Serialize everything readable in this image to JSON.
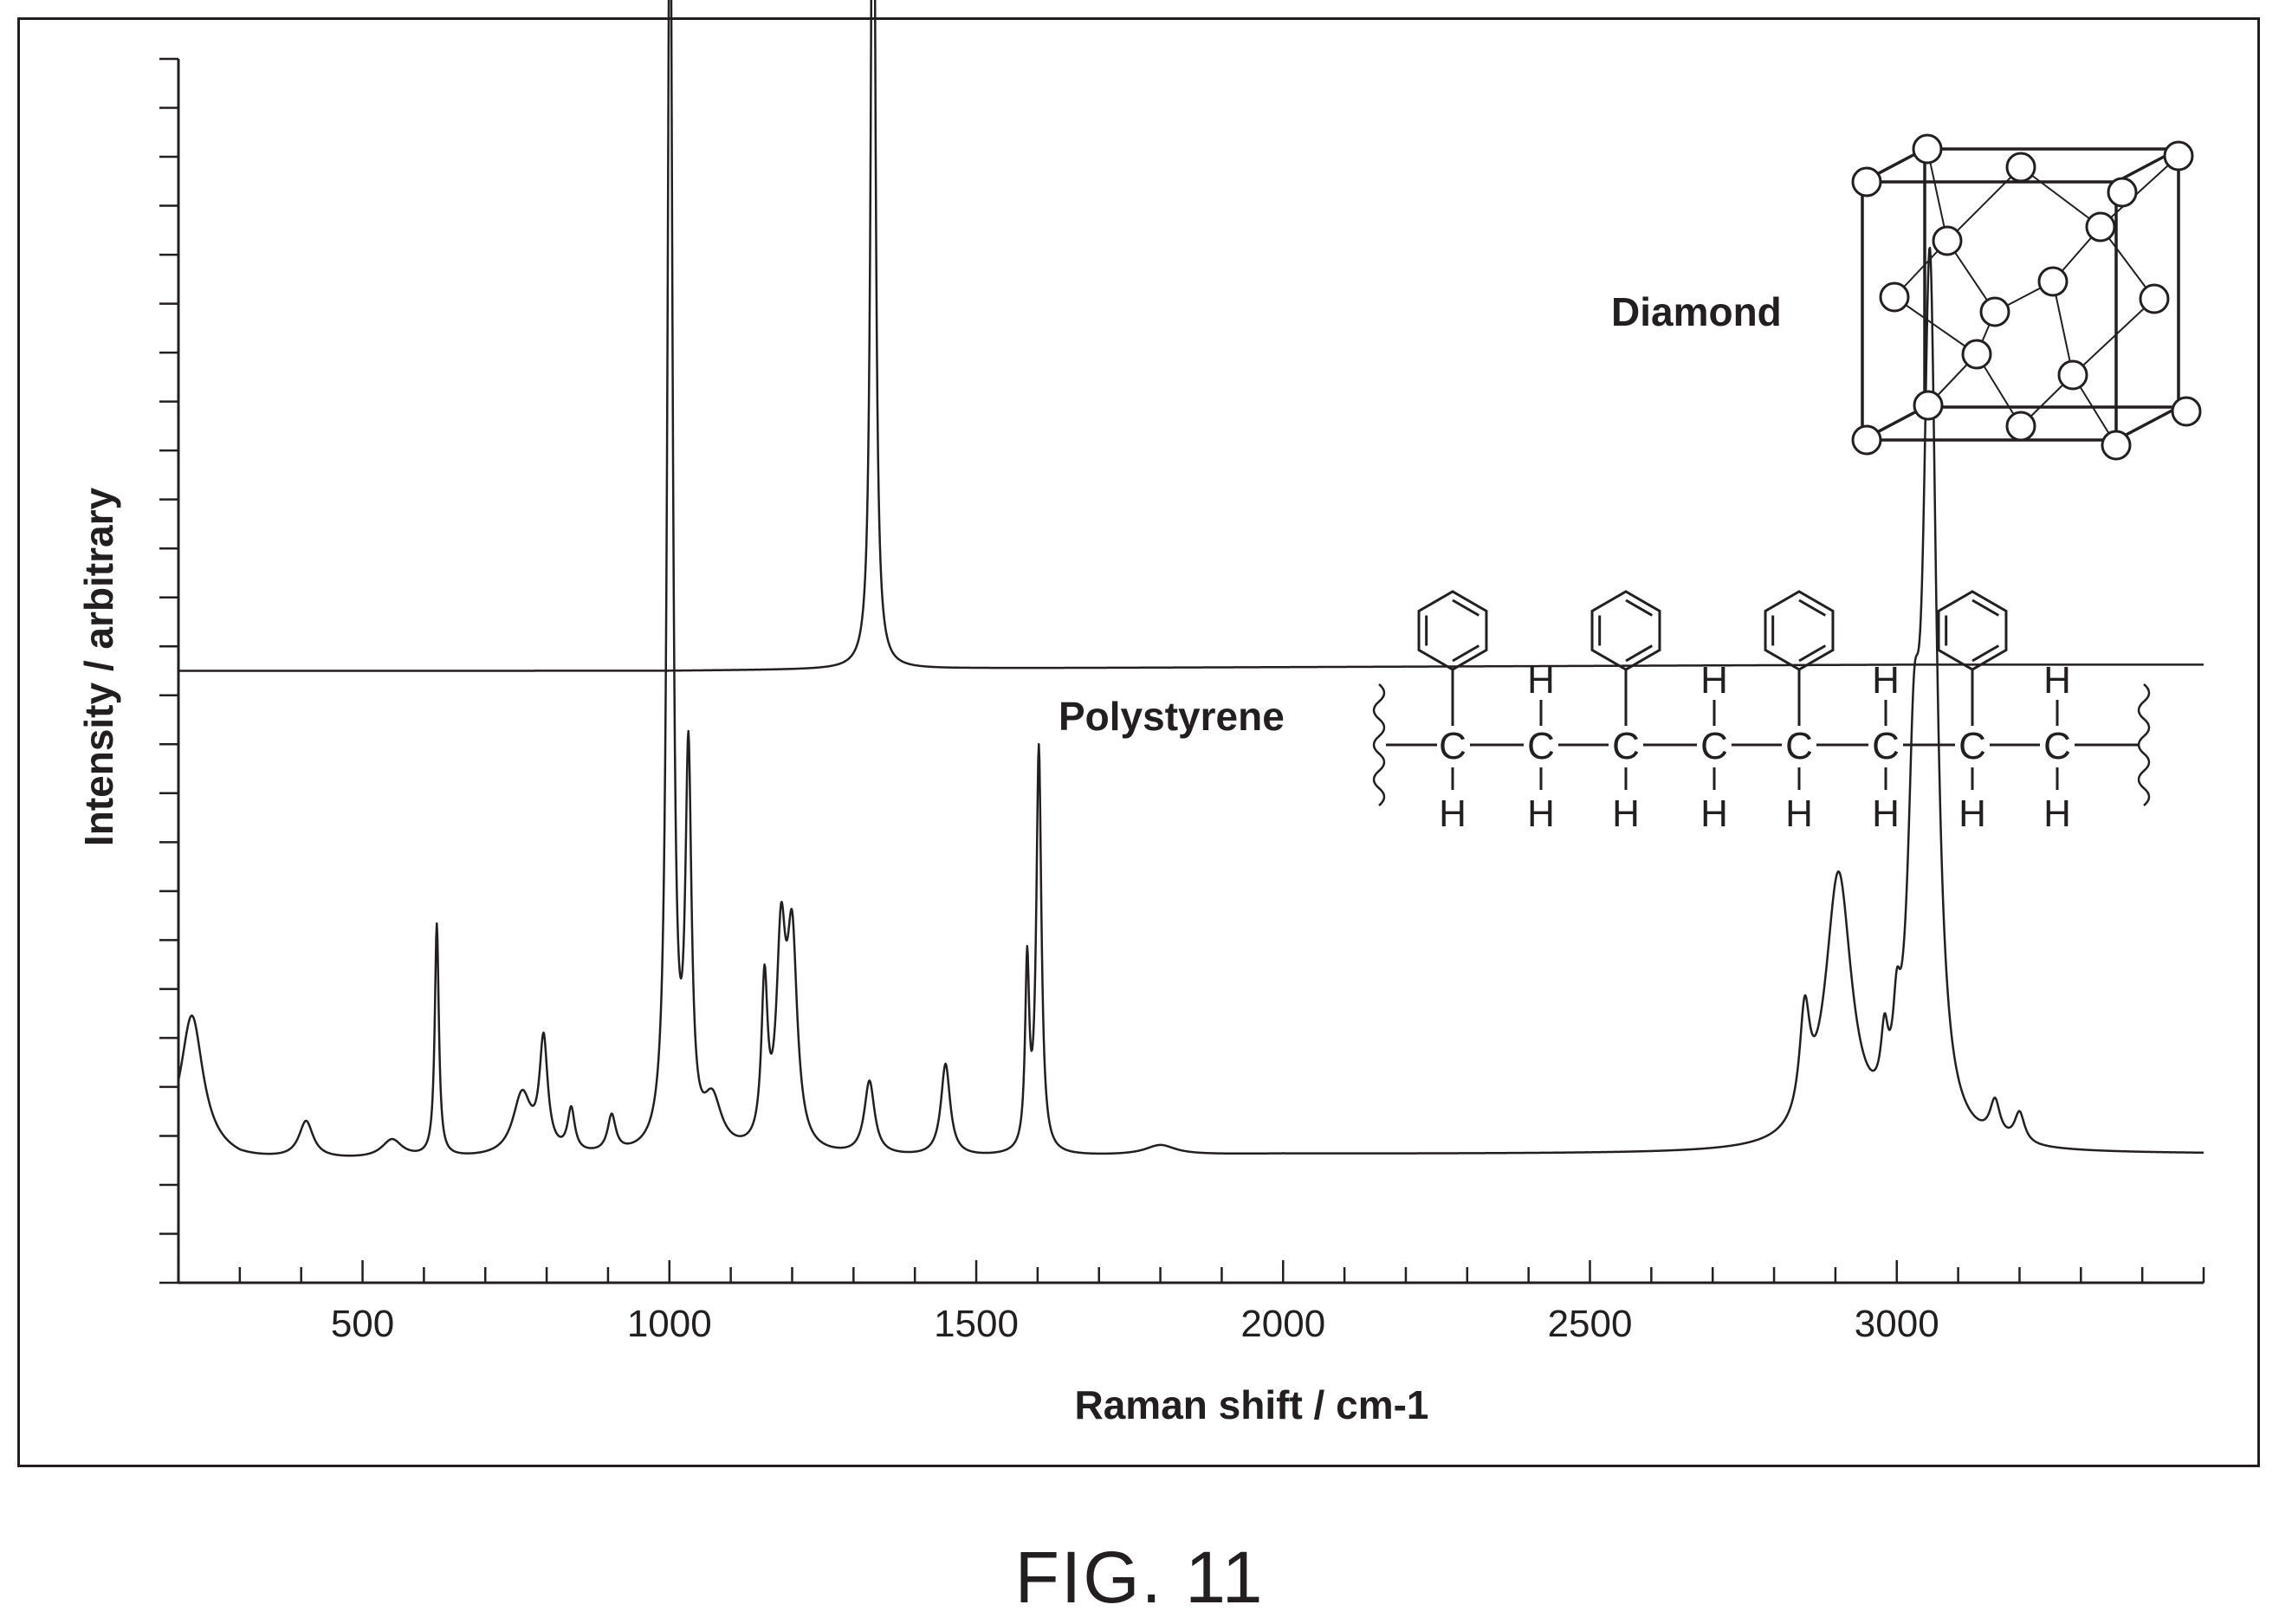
{
  "figure_label": "FIG. 11",
  "chart_data": {
    "type": "line",
    "title": "",
    "xlabel": "Raman shift / cm-1",
    "ylabel": "Intensity / arbitrary",
    "xlim": [
      200,
      3500
    ],
    "ylim": [
      -1.0,
      9.0
    ],
    "x_ticks": [
      500,
      1000,
      1500,
      2000,
      2500,
      3000
    ],
    "x_minor_tick_step": 100,
    "y_major_ticks": [
      0,
      2,
      4,
      6,
      8
    ],
    "y_minor_tick_step": 0.4,
    "y_tick_labels_shown": false,
    "grid": false,
    "legend": "none",
    "series": [
      {
        "name": "Diamond",
        "offset": 4.0,
        "baseline": [
          [
            200,
            0.0
          ],
          [
            500,
            0.0
          ],
          [
            1000,
            0.0
          ],
          [
            1500,
            0.02
          ],
          [
            2000,
            0.03
          ],
          [
            2500,
            0.04
          ],
          [
            3000,
            0.05
          ],
          [
            3500,
            0.05
          ]
        ],
        "peaks": [
          {
            "x": 1332,
            "height": 8.75,
            "width": 4
          }
        ]
      },
      {
        "name": "Polystyrene",
        "offset": 0.0,
        "baseline": [
          [
            200,
            0.1
          ],
          [
            300,
            0.0
          ],
          [
            500,
            0.0
          ],
          [
            1000,
            0.02
          ],
          [
            1500,
            0.02
          ],
          [
            2000,
            0.05
          ],
          [
            2500,
            0.05
          ],
          [
            2800,
            0.05
          ],
          [
            3500,
            0.05
          ]
        ],
        "peaks": [
          {
            "x": 222,
            "height": 1.1,
            "width": 22
          },
          {
            "x": 408,
            "height": 0.3,
            "width": 14
          },
          {
            "x": 548,
            "height": 0.15,
            "width": 20
          },
          {
            "x": 621,
            "height": 1.9,
            "width": 4
          },
          {
            "x": 760,
            "height": 0.5,
            "width": 18
          },
          {
            "x": 795,
            "height": 0.9,
            "width": 8
          },
          {
            "x": 840,
            "height": 0.35,
            "width": 7
          },
          {
            "x": 906,
            "height": 0.3,
            "width": 8
          },
          {
            "x": 1001,
            "height": 10.9,
            "width": 5
          },
          {
            "x": 1031,
            "height": 3.1,
            "width": 6
          },
          {
            "x": 1070,
            "height": 0.4,
            "width": 18
          },
          {
            "x": 1155,
            "height": 1.3,
            "width": 6
          },
          {
            "x": 1182,
            "height": 1.6,
            "width": 9
          },
          {
            "x": 1200,
            "height": 1.65,
            "width": 10
          },
          {
            "x": 1326,
            "height": 0.6,
            "width": 10
          },
          {
            "x": 1450,
            "height": 0.75,
            "width": 9
          },
          {
            "x": 1583,
            "height": 1.5,
            "width": 4
          },
          {
            "x": 1602,
            "height": 3.3,
            "width": 5
          },
          {
            "x": 1800,
            "height": 0.08,
            "width": 30
          },
          {
            "x": 2850,
            "height": 0.85,
            "width": 10
          },
          {
            "x": 2905,
            "height": 2.2,
            "width": 26
          },
          {
            "x": 2980,
            "height": 0.5,
            "width": 7
          },
          {
            "x": 3000,
            "height": 0.55,
            "width": 7
          },
          {
            "x": 3028,
            "height": 2.4,
            "width": 12
          },
          {
            "x": 3054,
            "height": 6.9,
            "width": 13
          },
          {
            "x": 3160,
            "height": 0.3,
            "width": 10
          },
          {
            "x": 3200,
            "height": 0.25,
            "width": 10
          }
        ]
      }
    ]
  },
  "annotations": {
    "diamond_label": "Diamond",
    "polystyrene_label": "Polystyrene",
    "carbon": "C",
    "hydrogen": "H"
  },
  "diamond_structure": {
    "description": "diamond cubic lattice unit cell"
  }
}
